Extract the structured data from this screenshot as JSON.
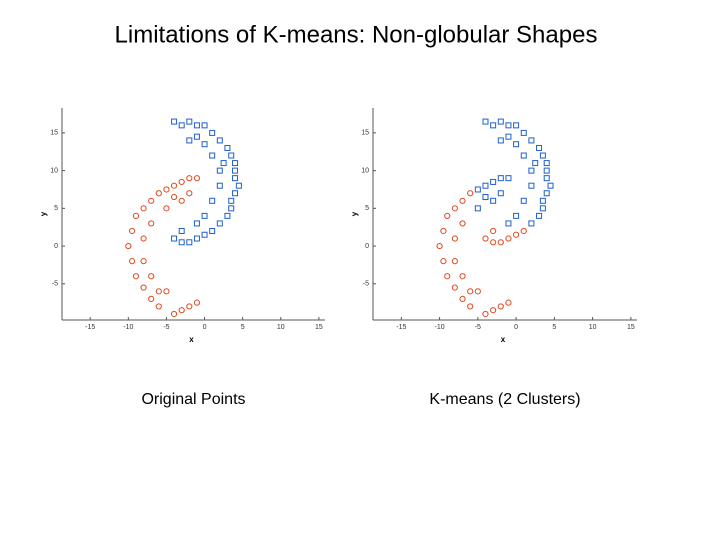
{
  "title": "Limitations of K-means: Non-globular Shapes",
  "chart_data": [
    {
      "type": "scatter",
      "caption": "Original Points",
      "x_label": "x",
      "y_label": "y",
      "xlim": [
        -18.7,
        15.8
      ],
      "ylim": [
        -9.8,
        18.3
      ],
      "xticks": [
        -15,
        -10,
        -5,
        0,
        5,
        10,
        15
      ],
      "yticks": [
        -5,
        0,
        5,
        10,
        15
      ],
      "series": [
        {
          "color": "#1f5fd0",
          "marker": "square",
          "x": [
            -4,
            -3,
            -2,
            -1,
            0,
            1,
            2,
            3,
            3.5,
            4,
            4,
            4,
            4.5,
            4,
            3.5,
            3.5,
            3,
            2,
            1,
            0,
            -1,
            -2,
            -3,
            -4,
            -2,
            0,
            1,
            2,
            2,
            1,
            0,
            -1,
            -3,
            -1,
            2.5
          ],
          "y": [
            16.5,
            16,
            16.5,
            16,
            16,
            15,
            14,
            13,
            12,
            11,
            10,
            9,
            8,
            7,
            6,
            5,
            4,
            3,
            2,
            1.5,
            1,
            0.5,
            0.5,
            1,
            14,
            13.5,
            12,
            10,
            8,
            6,
            4,
            3,
            2,
            14.5,
            11
          ]
        },
        {
          "color": "#e04a1f",
          "marker": "circle",
          "x": [
            -1,
            -2,
            -3,
            -4,
            -5,
            -6,
            -7,
            -8,
            -9,
            -9.5,
            -10,
            -9.5,
            -9,
            -8,
            -7,
            -6,
            -4,
            -3,
            -2,
            -1,
            -3,
            -5,
            -7,
            -8,
            -8,
            -7,
            -5,
            -2,
            -4,
            -6
          ],
          "y": [
            9,
            9,
            8.5,
            8,
            7.5,
            7,
            6,
            5,
            4,
            2,
            0,
            -2,
            -4,
            -5.5,
            -7,
            -8,
            -9,
            -8.5,
            -8,
            -7.5,
            6,
            5,
            3,
            1,
            -2,
            -4,
            -6,
            7,
            6.5,
            -6
          ]
        }
      ]
    },
    {
      "type": "scatter",
      "caption": "K-means (2 Clusters)",
      "x_label": "x",
      "y_label": "y",
      "xlim": [
        -18.7,
        15.8
      ],
      "ylim": [
        -9.8,
        18.3
      ],
      "xticks": [
        -15,
        -10,
        -5,
        0,
        5,
        10,
        15
      ],
      "yticks": [
        -5,
        0,
        5,
        10,
        15
      ],
      "series": [
        {
          "color": "#1f5fd0",
          "marker": "square",
          "x": [
            -4,
            -3,
            -2,
            -1,
            0,
            1,
            2,
            3,
            3.5,
            4,
            4,
            4,
            4.5,
            4,
            3.5,
            3.5,
            3,
            2,
            -2,
            0,
            1,
            2,
            2,
            1,
            0,
            -1,
            -1,
            2.5,
            -1,
            -2,
            -3,
            -4,
            -5,
            -3,
            -5,
            -2,
            -4
          ],
          "y": [
            16.5,
            16,
            16.5,
            16,
            16,
            15,
            14,
            13,
            12,
            11,
            10,
            9,
            8,
            7,
            6,
            5,
            4,
            3,
            14,
            13.5,
            12,
            10,
            8,
            6,
            4,
            3,
            14.5,
            11,
            9,
            9,
            8.5,
            8,
            7.5,
            6,
            5,
            7,
            6.5
          ]
        },
        {
          "color": "#e04a1f",
          "marker": "circle",
          "x": [
            1,
            0,
            -1,
            -2,
            -3,
            -4,
            -3,
            -6,
            -7,
            -8,
            -9,
            -9.5,
            -10,
            -9.5,
            -9,
            -8,
            -7,
            -6,
            -4,
            -3,
            -2,
            -1,
            -7,
            -8,
            -8,
            -7,
            -5,
            -6
          ],
          "y": [
            2,
            1.5,
            1,
            0.5,
            0.5,
            1,
            2,
            7,
            6,
            5,
            4,
            2,
            0,
            -2,
            -4,
            -5.5,
            -7,
            -8,
            -9,
            -8.5,
            -8,
            -7.5,
            3,
            1,
            -2,
            -4,
            -6,
            -6
          ]
        }
      ]
    }
  ]
}
